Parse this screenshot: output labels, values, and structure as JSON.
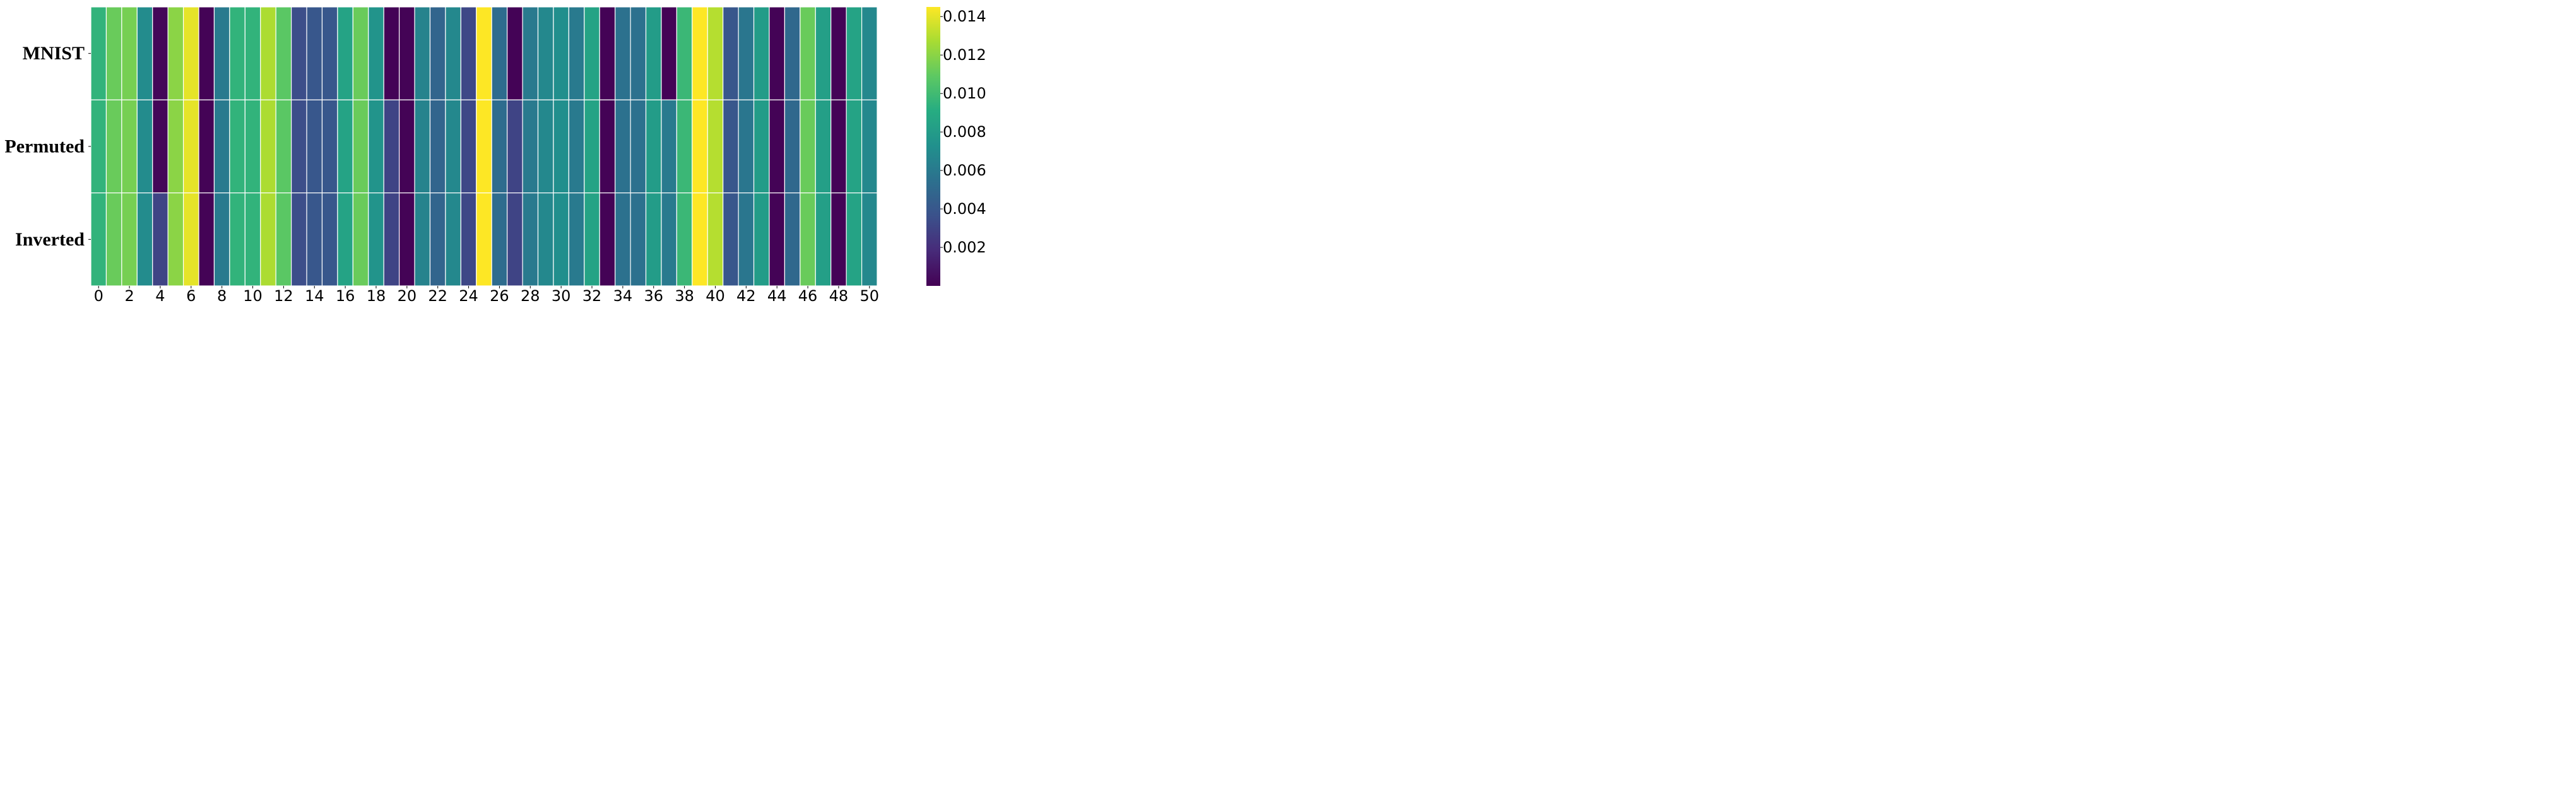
{
  "chart_data": {
    "type": "heatmap",
    "colormap": "viridis",
    "rows": [
      "MNIST",
      "Permuted",
      "Inverted"
    ],
    "x_tick_labels": [
      "0",
      "2",
      "4",
      "6",
      "8",
      "10",
      "12",
      "14",
      "16",
      "18",
      "20",
      "22",
      "24",
      "26",
      "28",
      "30",
      "32",
      "34",
      "36",
      "38",
      "40",
      "42",
      "44",
      "46",
      "48",
      "50"
    ],
    "columns": [
      0,
      1,
      2,
      3,
      4,
      5,
      6,
      7,
      8,
      9,
      10,
      11,
      12,
      13,
      14,
      15,
      16,
      17,
      18,
      19,
      20,
      21,
      22,
      23,
      24,
      25,
      26,
      27,
      28,
      29,
      30,
      31,
      32,
      33,
      34,
      35,
      36,
      37,
      38,
      39,
      40,
      41,
      42,
      43,
      44,
      45,
      46,
      47,
      48,
      49,
      50
    ],
    "values": [
      [
        0.0095,
        0.0112,
        0.0115,
        0.007,
        0.0002,
        0.012,
        0.014,
        0.0001,
        0.006,
        0.0095,
        0.0095,
        0.0128,
        0.0108,
        0.0035,
        0.004,
        0.004,
        0.0085,
        0.0112,
        0.0075,
        0.0001,
        0.0001,
        0.0065,
        0.0048,
        0.0068,
        0.0032,
        0.0145,
        0.0052,
        0.0001,
        0.006,
        0.0068,
        0.0072,
        0.006,
        0.0085,
        0.0001,
        0.0055,
        0.0055,
        0.008,
        0.0001,
        0.0098,
        0.0145,
        0.013,
        0.004,
        0.0058,
        0.008,
        0.0001,
        0.005,
        0.0112,
        0.0082,
        0.0001,
        0.0085,
        0.0068
      ],
      [
        0.0095,
        0.0112,
        0.0115,
        0.007,
        0.0002,
        0.012,
        0.014,
        0.0001,
        0.006,
        0.0095,
        0.0095,
        0.0128,
        0.0108,
        0.0035,
        0.004,
        0.004,
        0.0085,
        0.0112,
        0.0075,
        0.003,
        0.0001,
        0.0065,
        0.0048,
        0.0068,
        0.0032,
        0.0145,
        0.0052,
        0.003,
        0.006,
        0.0068,
        0.0072,
        0.006,
        0.0085,
        0.0001,
        0.0055,
        0.0055,
        0.008,
        0.006,
        0.0098,
        0.0145,
        0.013,
        0.004,
        0.0058,
        0.008,
        0.0001,
        0.005,
        0.0112,
        0.0082,
        0.0001,
        0.0085,
        0.0068
      ],
      [
        0.0095,
        0.0112,
        0.0115,
        0.007,
        0.003,
        0.012,
        0.014,
        0.0001,
        0.006,
        0.0095,
        0.0095,
        0.0128,
        0.0108,
        0.0035,
        0.004,
        0.004,
        0.0085,
        0.0112,
        0.0075,
        0.003,
        0.0001,
        0.0065,
        0.0048,
        0.0068,
        0.0032,
        0.0145,
        0.0052,
        0.003,
        0.006,
        0.0068,
        0.0072,
        0.006,
        0.0085,
        0.0001,
        0.0055,
        0.0055,
        0.008,
        0.006,
        0.0098,
        0.0145,
        0.013,
        0.004,
        0.0058,
        0.008,
        0.0001,
        0.005,
        0.0112,
        0.0082,
        0.0001,
        0.0085,
        0.0068
      ]
    ],
    "vmin": 0.0,
    "vmax": 0.0145,
    "colorbar_ticks": [
      "0.002",
      "0.004",
      "0.006",
      "0.008",
      "0.010",
      "0.012",
      "0.014"
    ],
    "colorbar_tick_values": [
      0.002,
      0.004,
      0.006,
      0.008,
      0.01,
      0.012,
      0.014
    ]
  }
}
